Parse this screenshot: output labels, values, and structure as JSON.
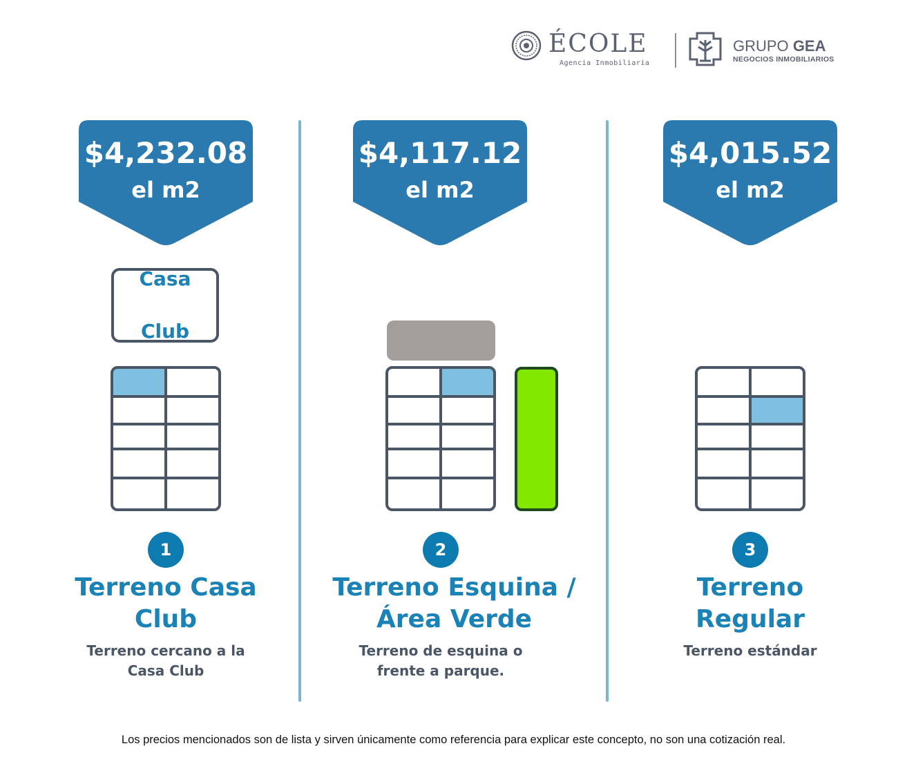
{
  "header": {
    "ecole_brand": "ÉCOLE",
    "ecole_tagline": "Agencia Inmobiliaria",
    "gea_brand_light": "GRUPO",
    "gea_brand_bold": "GEA",
    "gea_tagline": "NEGOCIOS INMOBILIARIOS"
  },
  "colors": {
    "badge_blue": "#2a7ab0",
    "accent_blue": "#1a82b5",
    "selected_lot": "#7fbfdf",
    "park_green": "#83e800",
    "road_gray": "#a39e99",
    "divider": "#7ab6d0"
  },
  "options": [
    {
      "price": "$4,232.08",
      "unit": "el m2",
      "number": "1",
      "title_line1": "Terreno Casa",
      "title_line2": "Club",
      "desc_line1": "Terreno cercano a la",
      "desc_line2": "Casa Club",
      "feature_label_line1": "Casa",
      "feature_label_line2": "Club"
    },
    {
      "price": "$4,117.12",
      "unit": "el m2",
      "number": "2",
      "title_line1": "Terreno Esquina /",
      "title_line2": "Área Verde",
      "desc_line1": "Terreno de esquina o",
      "desc_line2": "frente a parque."
    },
    {
      "price": "$4,015.52",
      "unit": "el m2",
      "number": "3",
      "title_line1": "Terreno",
      "title_line2": "Regular",
      "desc_line1": "Terreno estándar",
      "desc_line2": ""
    }
  ],
  "footer": {
    "disclaimer": "Los precios mencionados son de lista y sirven únicamente como referencia para explicar este concepto, no son una cotización real."
  },
  "icons": [
    "ecole-seal-icon",
    "grupo-gea-logo-icon"
  ]
}
